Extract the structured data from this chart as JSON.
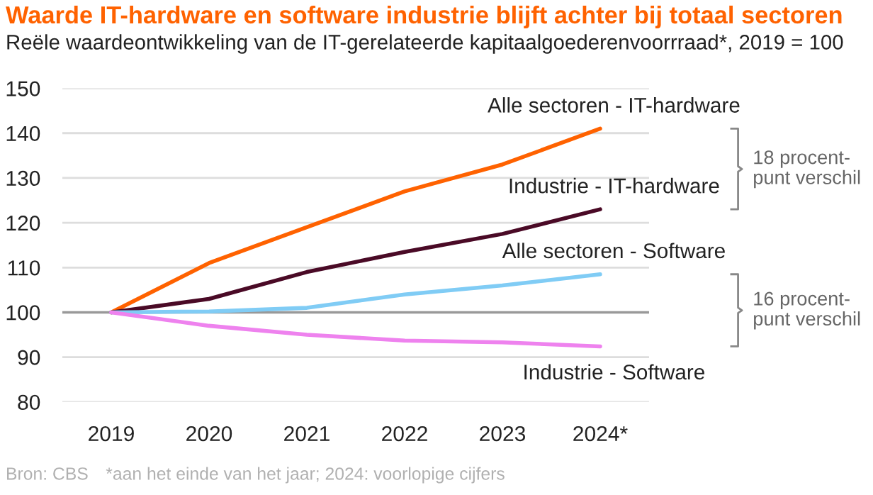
{
  "chart_data": {
    "type": "line",
    "title": "Waarde IT-hardware en software industrie blijft achter bij totaal sectoren",
    "subtitle": "Reële waardeontwikkeling van de IT-gerelateerde kapitaalgoederenvoorrraad*, 2019 = 100",
    "categories": [
      "2019",
      "2020",
      "2021",
      "2022",
      "2023",
      "2024*"
    ],
    "series": [
      {
        "name": "Alle sectoren - IT-hardware",
        "color": "#ff6200",
        "values": [
          100,
          111,
          119,
          127,
          133,
          141
        ]
      },
      {
        "name": "Industrie - IT-hardware",
        "color": "#4a0a26",
        "values": [
          100,
          103,
          109,
          113.5,
          117.5,
          123
        ]
      },
      {
        "name": "Alle sectoren - Software",
        "color": "#80ccf5",
        "values": [
          100,
          100.2,
          101,
          104,
          106,
          108.5
        ]
      },
      {
        "name": "Industrie - Software",
        "color": "#ee82ee",
        "values": [
          100,
          97,
          95,
          93.7,
          93.3,
          92.4
        ]
      }
    ],
    "ylim": [
      80,
      150
    ],
    "yticks": [
      80,
      90,
      100,
      110,
      120,
      130,
      140,
      150
    ],
    "grid": "y",
    "legend": false,
    "marker": "none",
    "line_style": "solid",
    "ref_lines": [
      {
        "axis": "y",
        "value": 100,
        "color": "#999999"
      }
    ],
    "annotations": [
      "18 procent-\npunt verschil",
      "16 procent-\npunt verschil",
      "Bron: CBS",
      "*aan het einde van het jaar; 2024: voorlopige cijfers"
    ]
  }
}
